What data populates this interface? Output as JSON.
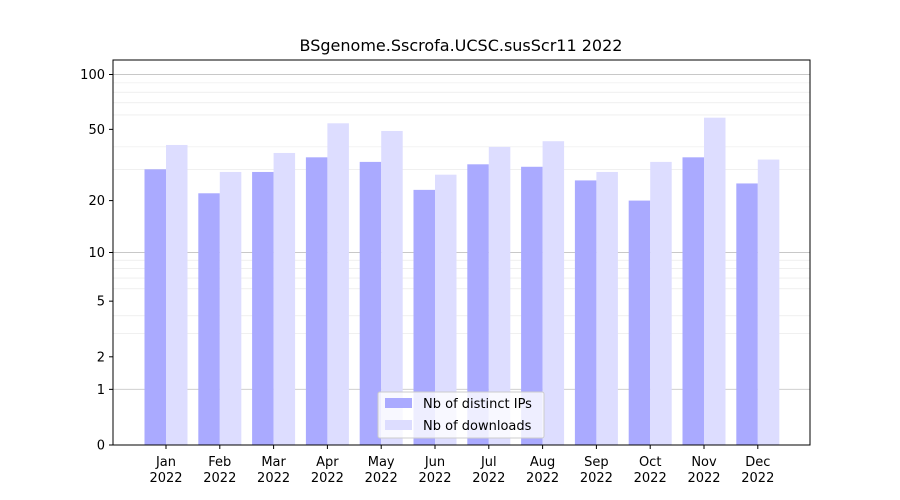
{
  "chart_data": {
    "type": "bar",
    "title": "BSgenome.Sscrofa.UCSC.susScr11 2022",
    "xlabel": "",
    "ylabel": "",
    "y_scale": "log(1+y)",
    "ylim": [
      0,
      120
    ],
    "y_ticks": [
      0,
      1,
      2,
      5,
      10,
      20,
      50,
      100
    ],
    "grid": true,
    "legend_position": "bottom-center",
    "categories": [
      [
        "Jan",
        "2022"
      ],
      [
        "Feb",
        "2022"
      ],
      [
        "Mar",
        "2022"
      ],
      [
        "Apr",
        "2022"
      ],
      [
        "May",
        "2022"
      ],
      [
        "Jun",
        "2022"
      ],
      [
        "Jul",
        "2022"
      ],
      [
        "Aug",
        "2022"
      ],
      [
        "Sep",
        "2022"
      ],
      [
        "Oct",
        "2022"
      ],
      [
        "Nov",
        "2022"
      ],
      [
        "Dec",
        "2022"
      ]
    ],
    "series": [
      {
        "name": "Nb of distinct IPs",
        "color": "#aaaaff",
        "values": [
          30,
          22,
          29,
          35,
          33,
          23,
          32,
          31,
          26,
          20,
          35,
          25
        ]
      },
      {
        "name": "Nb of downloads",
        "color": "#ddddff",
        "values": [
          41,
          29,
          37,
          54,
          49,
          28,
          40,
          43,
          29,
          33,
          58,
          34
        ]
      }
    ]
  }
}
